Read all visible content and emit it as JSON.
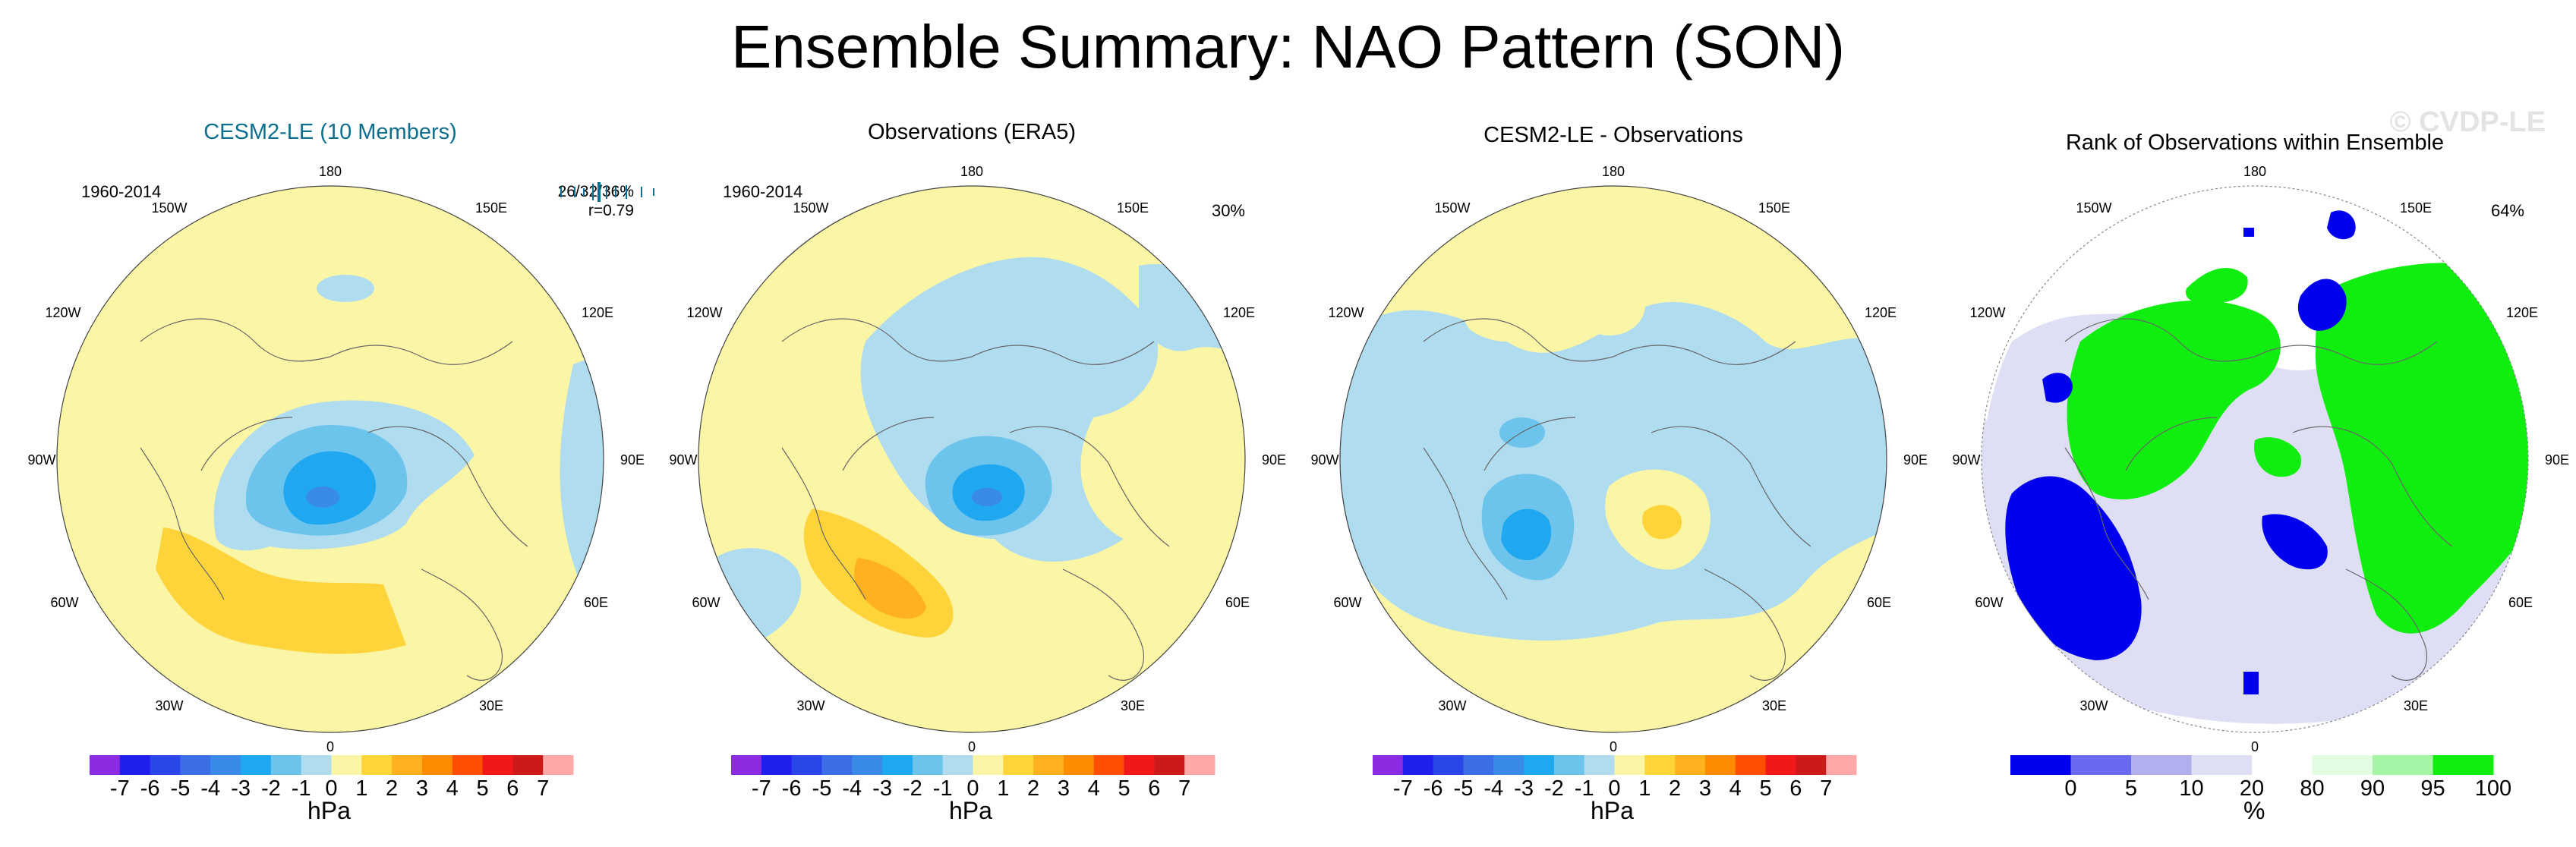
{
  "title": "Ensemble Summary: NAO Pattern (SON)",
  "watermark": "© CVDP-LE",
  "panels": [
    {
      "title": "CESM2-LE (10 Members)",
      "period": "1960-2014",
      "stats_line1": "26/32/36%",
      "stats_line2": "r=0.79"
    },
    {
      "title": "Observations (ERA5)",
      "period": "1960-2014",
      "percent": "30%"
    },
    {
      "title": "CESM2-LE - Observations"
    },
    {
      "title": "Rank of Observations within Ensemble",
      "percent": "64%"
    }
  ],
  "map_labels": {
    "top": "180",
    "bottom": "0",
    "left": "90W",
    "right": "90E",
    "ul1": "150W",
    "ul2": "120W",
    "ur1": "150E",
    "ur2": "120E",
    "ll1": "60W",
    "ll2": "30W",
    "lr1": "60E",
    "lr2": "30E"
  },
  "colors": {
    "title_blue": "#0d6f8f",
    "coast": "#666666",
    "green": "#10ee10",
    "blue": "#0000ee"
  },
  "chart_data": [
    {
      "type": "colorbar",
      "unit": "hPa",
      "tick_labels": [
        "-7",
        "-6",
        "-5",
        "-4",
        "-3",
        "-2",
        "-1",
        "0",
        "1",
        "2",
        "3",
        "4",
        "5",
        "6",
        "7"
      ],
      "colors": [
        "#8a2be2",
        "#2020ee",
        "#2a45e8",
        "#3c6ee6",
        "#3a8ae8",
        "#1fa8f0",
        "#6cc3ec",
        "#b0dcf0",
        "#fbf5a6",
        "#ffd43b",
        "#ffb11f",
        "#ff8c00",
        "#ff4e00",
        "#f01818",
        "#cc1a1a",
        "#ffa8a8"
      ]
    },
    {
      "type": "colorbar",
      "unit": "%",
      "tick_labels": [
        "0",
        "5",
        "10",
        "20",
        "80",
        "90",
        "95",
        "100"
      ],
      "colors": [
        "#0000ee",
        "#6a6af0",
        "#b0b0f0",
        "#dedef5",
        "#ffffff",
        "#e2fce2",
        "#a6f5a6",
        "#10ee10"
      ]
    }
  ]
}
